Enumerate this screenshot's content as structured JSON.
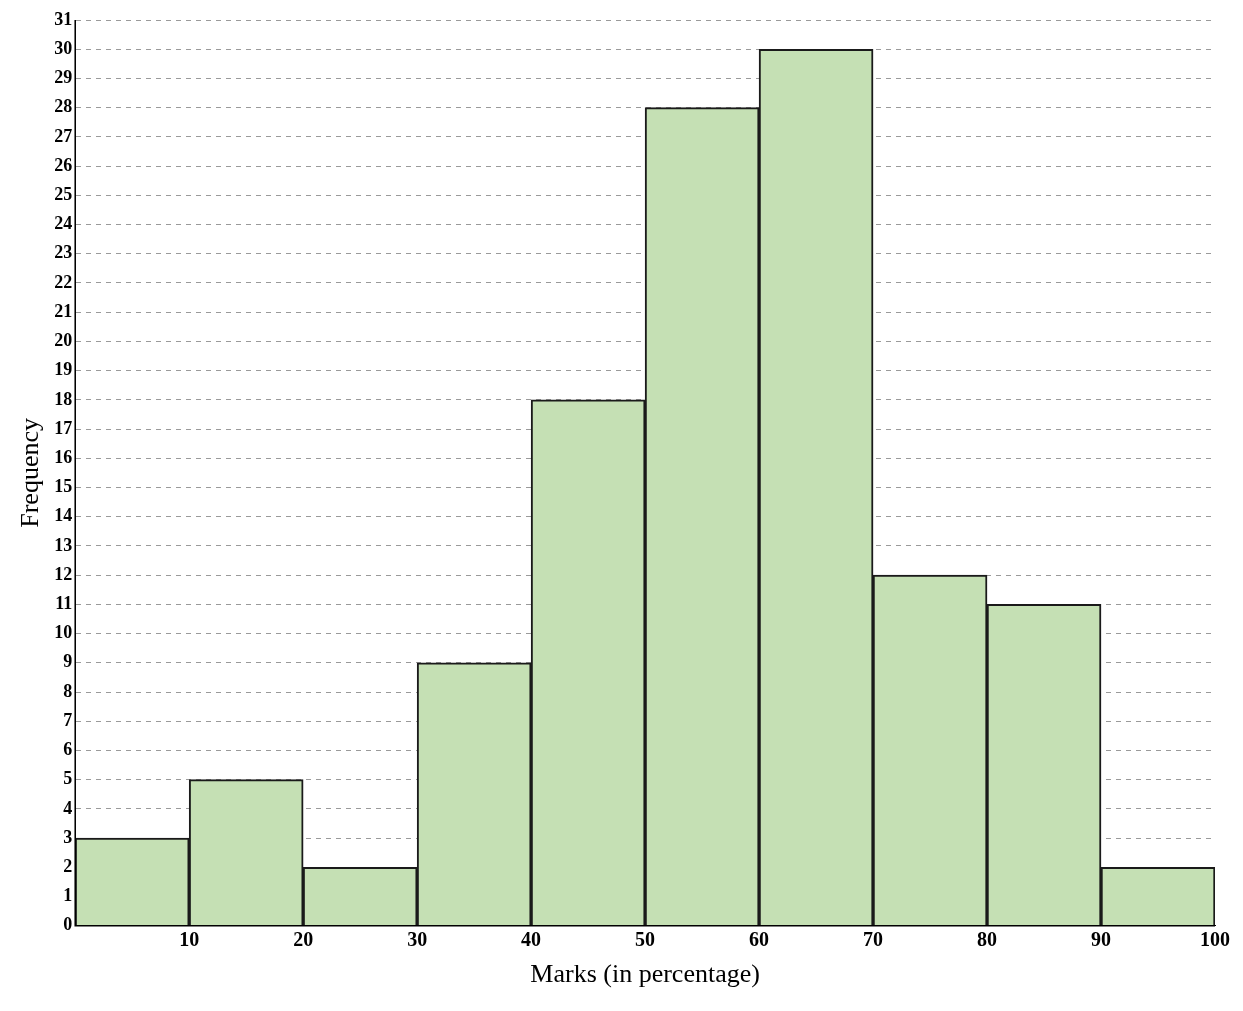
{
  "chart_data": {
    "type": "histogram",
    "x_label": "Marks (in percentage)",
    "y_label": "Frequency",
    "bins": [
      0,
      10,
      20,
      30,
      40,
      50,
      60,
      70,
      80,
      90,
      100
    ],
    "values": [
      3,
      5,
      2,
      9,
      18,
      28,
      30,
      12,
      11,
      2
    ],
    "color": "#c5e0b4",
    "xlim": [
      0,
      100
    ],
    "xticks": [
      10,
      20,
      30,
      40,
      50,
      60,
      70,
      80,
      90,
      100
    ],
    "ylim": [
      0,
      31
    ],
    "yticks": [
      0,
      1,
      2,
      3,
      4,
      5,
      6,
      7,
      8,
      9,
      10,
      11,
      12,
      13,
      14,
      15,
      16,
      17,
      18,
      19,
      20,
      21,
      22,
      23,
      24,
      25,
      26,
      27,
      28,
      29,
      30,
      31
    ],
    "grid": true
  }
}
